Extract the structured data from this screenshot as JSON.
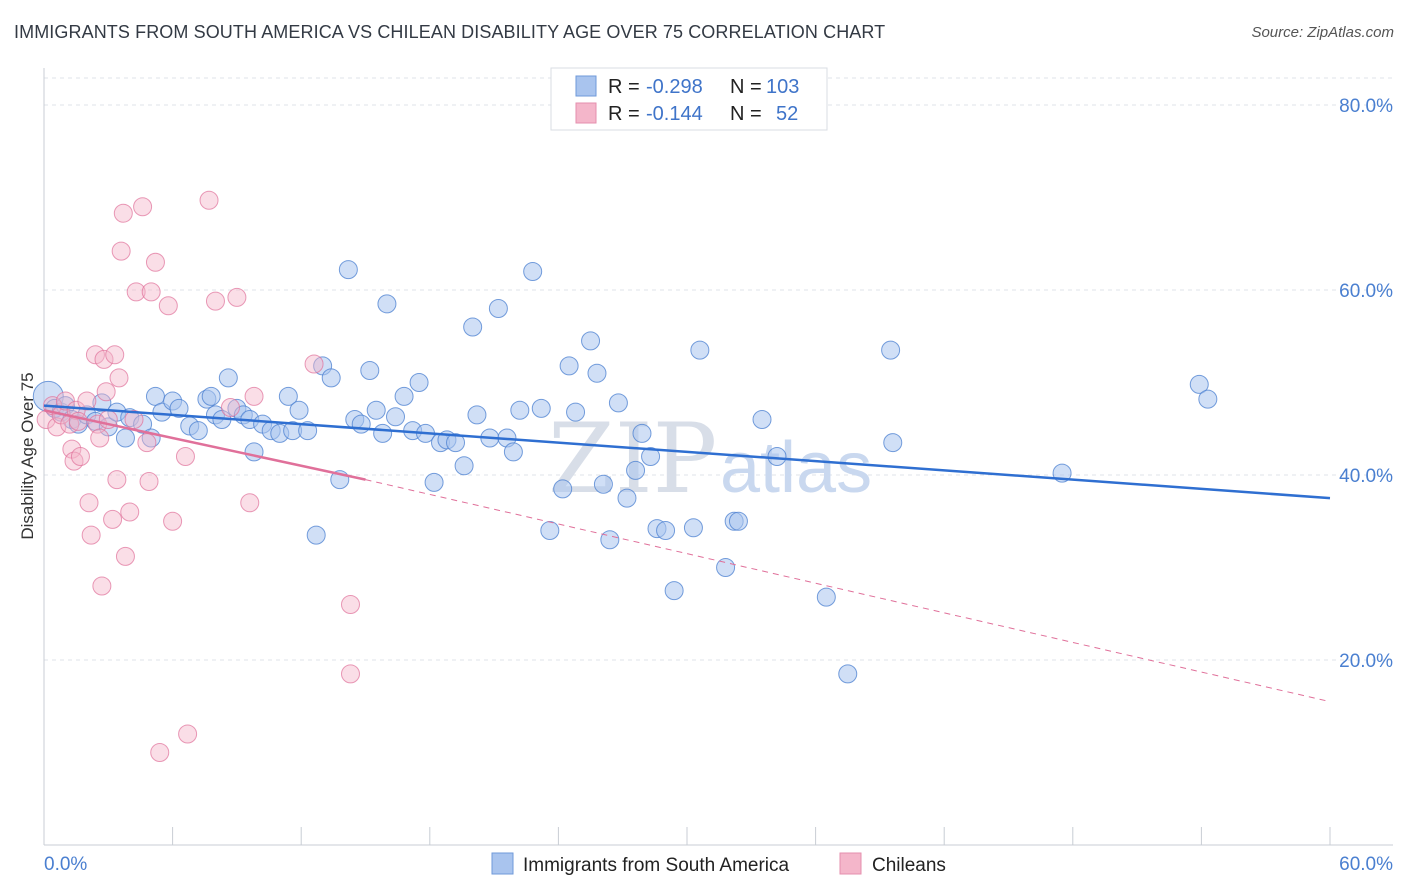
{
  "title": "IMMIGRANTS FROM SOUTH AMERICA VS CHILEAN DISABILITY AGE OVER 75 CORRELATION CHART",
  "source": "Source: ZipAtlas.com",
  "watermark": {
    "zip": "ZIP",
    "atlas": "atlas"
  },
  "colors": {
    "blue": "#4a7fd0",
    "blue_fill": "#a9c4ee",
    "pink": "#e0709a",
    "pink_fill": "#f4b6ca",
    "grid": "#dfe3e8"
  },
  "legend": {
    "r_label": "R =",
    "n_label": "N =",
    "rows": [
      {
        "r": "-0.298",
        "n": "103"
      },
      {
        "r": "-0.144",
        "n": "52"
      }
    ]
  },
  "chart_data": {
    "type": "scatter",
    "title": "IMMIGRANTS FROM SOUTH AMERICA VS CHILEAN DISABILITY AGE OVER 75 CORRELATION CHART",
    "xlabel": "",
    "ylabel": "Disability Age Over 75",
    "xlim": [
      0,
      60
    ],
    "ylim": [
      0,
      84
    ],
    "x_tick_labels": [
      "0.0%",
      "60.0%"
    ],
    "y_tick_labels": [
      "20.0%",
      "40.0%",
      "60.0%",
      "80.0%"
    ],
    "y_ticks": [
      20,
      40,
      60,
      80
    ],
    "grid": true,
    "legend_position": "top-center",
    "series": [
      {
        "name": "Immigrants from South America",
        "r": -0.298,
        "n": 103,
        "trend": {
          "x": [
            0,
            60
          ],
          "y": [
            47.5,
            37.5
          ],
          "dashed_to": null
        },
        "points": [
          [
            0.2,
            48.5
          ],
          [
            0.5,
            47.2
          ],
          [
            0.8,
            46.8
          ],
          [
            1.0,
            47.5
          ],
          [
            1.3,
            46.0
          ],
          [
            1.6,
            45.5
          ],
          [
            2.0,
            46.5
          ],
          [
            2.4,
            45.8
          ],
          [
            2.7,
            47.8
          ],
          [
            3.0,
            45.2
          ],
          [
            3.4,
            46.8
          ],
          [
            3.8,
            44.0
          ],
          [
            4.0,
            46.2
          ],
          [
            4.6,
            45.5
          ],
          [
            5.0,
            44.0
          ],
          [
            5.2,
            48.5
          ],
          [
            5.5,
            46.8
          ],
          [
            6.0,
            48.0
          ],
          [
            6.3,
            47.2
          ],
          [
            6.8,
            45.3
          ],
          [
            7.2,
            44.8
          ],
          [
            7.6,
            48.2
          ],
          [
            7.8,
            48.5
          ],
          [
            8.0,
            46.5
          ],
          [
            8.3,
            46.0
          ],
          [
            8.6,
            50.5
          ],
          [
            9.0,
            47.2
          ],
          [
            9.3,
            46.5
          ],
          [
            9.6,
            46.0
          ],
          [
            9.8,
            42.5
          ],
          [
            10.2,
            45.5
          ],
          [
            10.6,
            44.8
          ],
          [
            11.0,
            44.5
          ],
          [
            11.4,
            48.5
          ],
          [
            11.6,
            44.8
          ],
          [
            11.9,
            47.0
          ],
          [
            12.3,
            44.8
          ],
          [
            12.7,
            33.5
          ],
          [
            13.0,
            51.8
          ],
          [
            13.4,
            50.5
          ],
          [
            13.8,
            39.5
          ],
          [
            14.2,
            62.2
          ],
          [
            14.5,
            46.0
          ],
          [
            14.8,
            45.5
          ],
          [
            15.2,
            51.3
          ],
          [
            15.5,
            47.0
          ],
          [
            15.8,
            44.5
          ],
          [
            16.0,
            58.5
          ],
          [
            16.4,
            46.3
          ],
          [
            16.8,
            48.5
          ],
          [
            17.2,
            44.8
          ],
          [
            17.5,
            50.0
          ],
          [
            17.8,
            44.5
          ],
          [
            18.2,
            39.2
          ],
          [
            18.5,
            43.5
          ],
          [
            18.8,
            43.8
          ],
          [
            19.2,
            43.5
          ],
          [
            19.6,
            41.0
          ],
          [
            20.0,
            56.0
          ],
          [
            20.2,
            46.5
          ],
          [
            20.8,
            44.0
          ],
          [
            21.2,
            58.0
          ],
          [
            21.6,
            44.0
          ],
          [
            21.9,
            42.5
          ],
          [
            22.2,
            47.0
          ],
          [
            22.8,
            62.0
          ],
          [
            23.2,
            47.2
          ],
          [
            23.6,
            34.0
          ],
          [
            24.2,
            38.5
          ],
          [
            24.5,
            51.8
          ],
          [
            24.8,
            46.8
          ],
          [
            25.5,
            54.5
          ],
          [
            25.8,
            51.0
          ],
          [
            26.1,
            39.0
          ],
          [
            26.4,
            33.0
          ],
          [
            26.8,
            47.8
          ],
          [
            27.2,
            37.5
          ],
          [
            27.6,
            40.5
          ],
          [
            27.9,
            44.5
          ],
          [
            28.3,
            42.0
          ],
          [
            28.6,
            34.2
          ],
          [
            29.0,
            34.0
          ],
          [
            29.4,
            27.5
          ],
          [
            30.3,
            34.3
          ],
          [
            30.6,
            53.5
          ],
          [
            31.8,
            30.0
          ],
          [
            32.2,
            35.0
          ],
          [
            32.4,
            35.0
          ],
          [
            33.5,
            46.0
          ],
          [
            34.2,
            42.0
          ],
          [
            36.5,
            26.8
          ],
          [
            37.5,
            18.5
          ],
          [
            39.5,
            53.5
          ],
          [
            39.6,
            43.5
          ],
          [
            47.5,
            40.2
          ],
          [
            53.9,
            49.8
          ],
          [
            54.3,
            48.2
          ]
        ]
      },
      {
        "name": "Chileans",
        "r": -0.144,
        "n": 52,
        "trend": {
          "x": [
            0,
            15
          ],
          "y": [
            47.0,
            39.5
          ],
          "dashed_x": [
            15,
            60
          ],
          "dashed_y": [
            39.5,
            15.5
          ]
        },
        "points": [
          [
            0.1,
            46.0
          ],
          [
            0.4,
            47.5
          ],
          [
            0.6,
            45.2
          ],
          [
            0.8,
            46.5
          ],
          [
            1.0,
            48.0
          ],
          [
            1.2,
            45.5
          ],
          [
            1.3,
            42.8
          ],
          [
            1.4,
            41.5
          ],
          [
            1.5,
            47.0
          ],
          [
            1.6,
            45.8
          ],
          [
            1.7,
            42.0
          ],
          [
            2.0,
            48.0
          ],
          [
            2.1,
            37.0
          ],
          [
            2.2,
            33.5
          ],
          [
            2.4,
            53.0
          ],
          [
            2.5,
            45.5
          ],
          [
            2.6,
            44.0
          ],
          [
            2.7,
            28.0
          ],
          [
            2.8,
            52.5
          ],
          [
            2.9,
            49.0
          ],
          [
            3.0,
            46.0
          ],
          [
            3.2,
            35.2
          ],
          [
            3.3,
            53.0
          ],
          [
            3.4,
            39.5
          ],
          [
            3.5,
            50.5
          ],
          [
            3.6,
            64.2
          ],
          [
            3.7,
            68.3
          ],
          [
            3.8,
            31.2
          ],
          [
            4.0,
            36.0
          ],
          [
            4.2,
            46.0
          ],
          [
            4.3,
            59.8
          ],
          [
            4.6,
            69.0
          ],
          [
            4.8,
            43.5
          ],
          [
            4.9,
            39.3
          ],
          [
            5.0,
            59.8
          ],
          [
            5.2,
            63.0
          ],
          [
            5.4,
            10.0
          ],
          [
            5.8,
            58.3
          ],
          [
            6.0,
            35.0
          ],
          [
            6.6,
            42.0
          ],
          [
            6.7,
            12.0
          ],
          [
            7.7,
            69.7
          ],
          [
            8.0,
            58.8
          ],
          [
            8.7,
            47.3
          ],
          [
            9.0,
            59.2
          ],
          [
            9.6,
            37.0
          ],
          [
            9.8,
            48.5
          ],
          [
            12.6,
            52.0
          ],
          [
            14.3,
            26.0
          ],
          [
            14.3,
            18.5
          ]
        ]
      }
    ],
    "bottom_legend": [
      "Immigrants from South America",
      "Chileans"
    ]
  }
}
